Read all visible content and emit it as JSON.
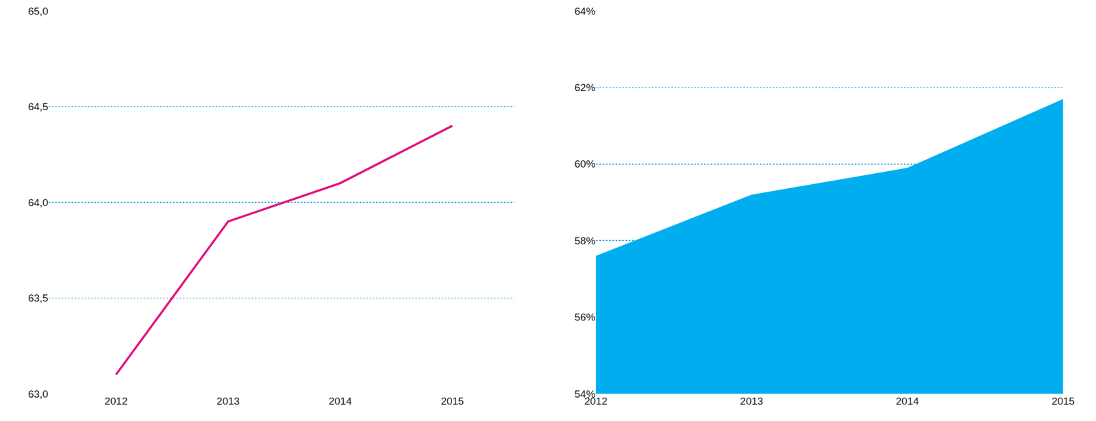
{
  "chart_data": [
    {
      "type": "line",
      "categories": [
        "2012",
        "2013",
        "2014",
        "2015"
      ],
      "values": [
        63.1,
        63.9,
        64.1,
        64.4
      ],
      "color": "#e2177f",
      "ylim": [
        63.0,
        65.0
      ],
      "yticks": [
        {
          "value": 63.0,
          "label": "63,0"
        },
        {
          "value": 63.5,
          "label": "63,5"
        },
        {
          "value": 64.0,
          "label": "64,0"
        },
        {
          "value": 64.5,
          "label": "64,5"
        },
        {
          "value": 65.0,
          "label": "65,0"
        }
      ],
      "grid": true
    },
    {
      "type": "area",
      "x": [
        2012,
        2013,
        2014,
        2015
      ],
      "values": [
        57.6,
        59.2,
        59.9,
        61.7
      ],
      "color": "#00aeef",
      "xlim": [
        2012,
        2015
      ],
      "xticks": [
        2012,
        2013,
        2014,
        2015
      ],
      "ylim": [
        54,
        64
      ],
      "yticks": [
        {
          "value": 54,
          "label": "54%"
        },
        {
          "value": 56,
          "label": "56%"
        },
        {
          "value": 58,
          "label": "58%"
        },
        {
          "value": 60,
          "label": "60%"
        },
        {
          "value": 62,
          "label": "62%"
        },
        {
          "value": 64,
          "label": "64%"
        }
      ],
      "grid": true
    }
  ]
}
